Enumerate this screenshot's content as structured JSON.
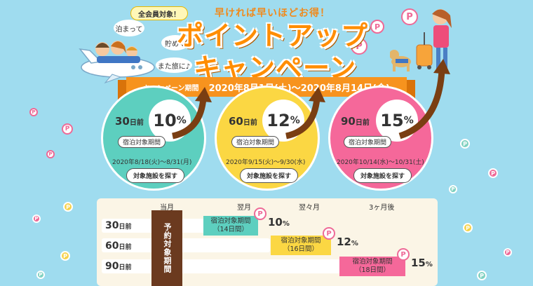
{
  "header": {
    "badge": "全会員対象！",
    "tagline": "早ければ早いほどお得！",
    "title_line1": "ポイントアップ",
    "title_line2": "キャンペーン",
    "bubble1": "泊まって",
    "bubble2": "貯めて",
    "bubble3": "また旅に♪"
  },
  "banner": {
    "label": "キャンペーン期間",
    "dates": "2020年8月1日(土)～2020年8月14日(金)"
  },
  "offers": [
    {
      "days": "30",
      "days_unit": "日前",
      "pct": "10",
      "pct_unit": "%",
      "stay_label": "宿泊対象期間",
      "range": "2020年8/18(火)～8/31(月)",
      "button": "対象施設を探す"
    },
    {
      "days": "60",
      "days_unit": "日前",
      "pct": "12",
      "pct_unit": "%",
      "stay_label": "宿泊対象期間",
      "range": "2020年9/15(火)～9/30(水)",
      "button": "対象施設を探す"
    },
    {
      "days": "90",
      "days_unit": "日前",
      "pct": "15",
      "pct_unit": "%",
      "stay_label": "宿泊対象期間",
      "range": "2020年10/14(水)～10/31(土)",
      "button": "対象施設を探す"
    }
  ],
  "schedule": {
    "months": [
      "当月",
      "翌月",
      "翌々月",
      "3ヶ月後"
    ],
    "reserve_label": "予約対象期間",
    "rows": [
      {
        "days": "30",
        "unit": "日前",
        "period_line1": "宿泊対象期間",
        "period_line2": "（14日間）",
        "pct": "10",
        "pct_unit": "%"
      },
      {
        "days": "60",
        "unit": "日前",
        "period_line1": "宿泊対象期間",
        "period_line2": "（16日間）",
        "pct": "12",
        "pct_unit": "%"
      },
      {
        "days": "90",
        "unit": "日前",
        "period_line1": "宿泊対象期間",
        "period_line2": "（18日間）",
        "pct": "15",
        "pct_unit": "%"
      }
    ]
  },
  "coin_glyph": "P",
  "colors": {
    "sky": "#9fdcef",
    "orange": "#f7931e",
    "green": "#5dcfbf",
    "yellow": "#fbd743",
    "pink": "#f5689a",
    "brown": "#6b3a1f"
  }
}
